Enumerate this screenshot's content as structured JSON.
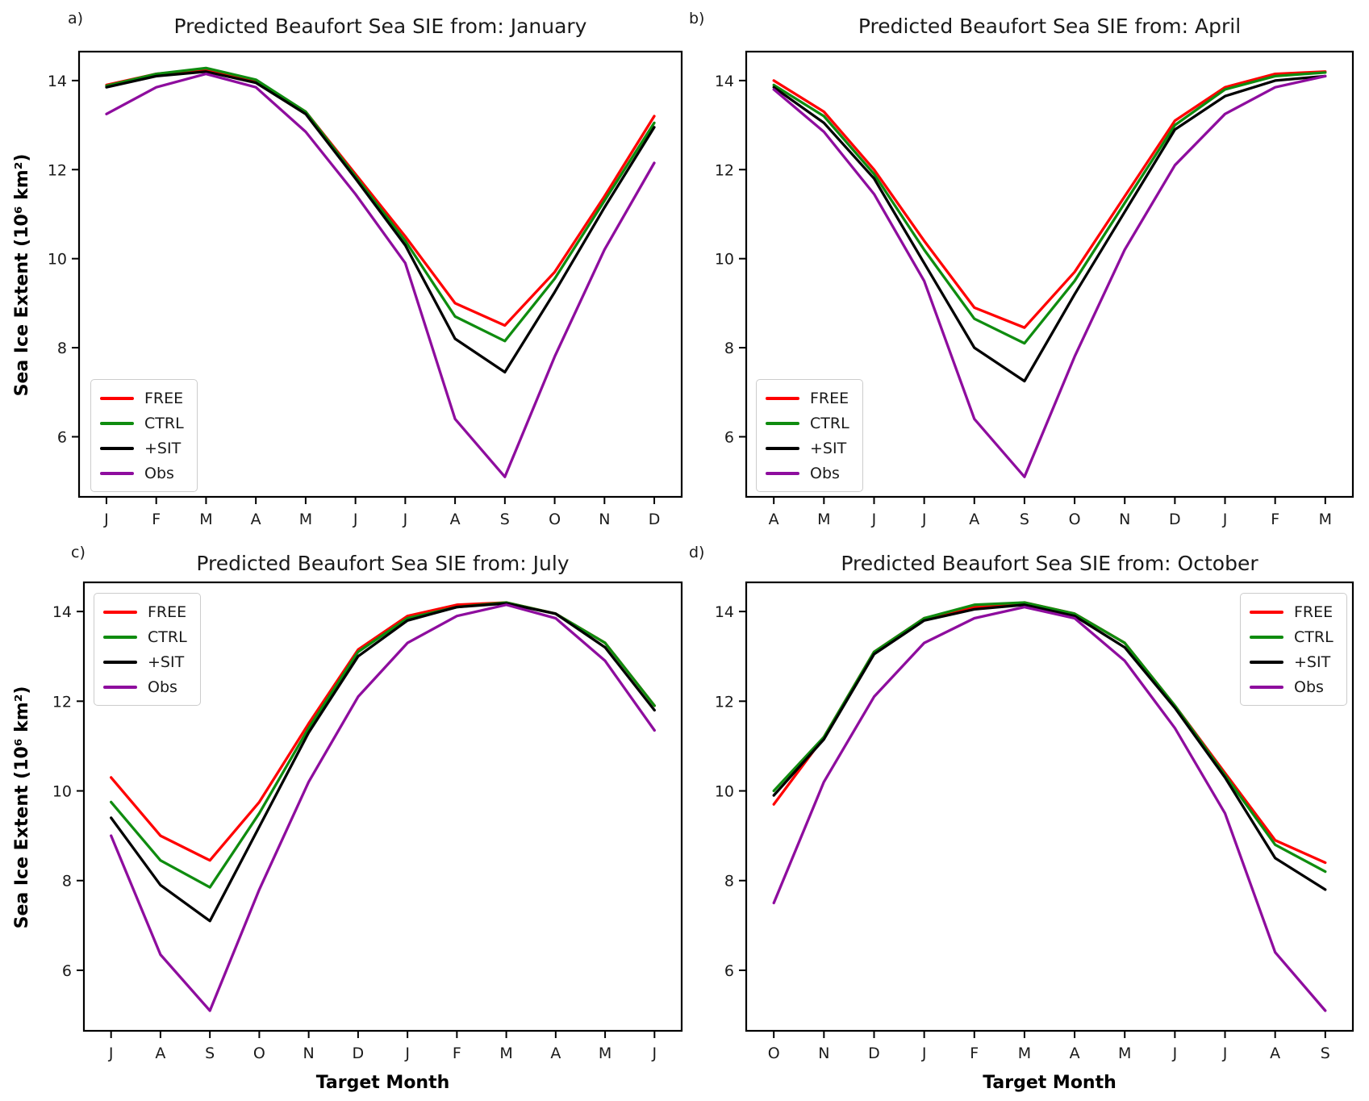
{
  "figure": {
    "ylabel": "Sea Ice Extent (10⁶ km²)",
    "xlabel": "Target Month"
  },
  "chart_data": [
    {
      "type": "line",
      "panel_label": "a)",
      "title": "Predicted Beaufort Sea SIE from: January",
      "xlabel": "",
      "ylabel": "Sea Ice Extent (10⁶ km²)",
      "categories": [
        "J",
        "F",
        "M",
        "A",
        "M",
        "J",
        "J",
        "A",
        "S",
        "O",
        "N",
        "D"
      ],
      "yticks": [
        6,
        8,
        10,
        12,
        14
      ],
      "ylim": [
        4.65,
        14.65
      ],
      "grid": false,
      "legend_position": "lower-left",
      "series": [
        {
          "name": "FREE",
          "color": "#ff0000",
          "values": [
            13.9,
            14.15,
            14.25,
            14.0,
            13.3,
            11.9,
            10.5,
            9.0,
            8.5,
            9.7,
            11.4,
            13.2
          ]
        },
        {
          "name": "CTRL",
          "color": "#0f8c0f",
          "values": [
            13.88,
            14.15,
            14.28,
            14.02,
            13.3,
            11.85,
            10.4,
            8.7,
            8.15,
            9.55,
            11.3,
            13.05
          ]
        },
        {
          "name": "+SIT",
          "color": "#000000",
          "values": [
            13.85,
            14.1,
            14.2,
            13.95,
            13.25,
            11.8,
            10.3,
            8.2,
            7.45,
            9.25,
            11.15,
            12.95
          ]
        },
        {
          "name": "Obs",
          "color": "#8e0d9e",
          "values": [
            13.25,
            13.85,
            14.15,
            13.85,
            12.85,
            11.45,
            9.9,
            6.4,
            5.1,
            7.8,
            10.2,
            12.15
          ]
        }
      ]
    },
    {
      "type": "line",
      "panel_label": "b)",
      "title": "Predicted Beaufort Sea SIE from: April",
      "xlabel": "",
      "ylabel": "",
      "categories": [
        "A",
        "M",
        "J",
        "J",
        "A",
        "S",
        "O",
        "N",
        "D",
        "J",
        "F",
        "M"
      ],
      "yticks": [
        6,
        8,
        10,
        12,
        14
      ],
      "ylim": [
        4.65,
        14.65
      ],
      "grid": false,
      "legend_position": "lower-left",
      "series": [
        {
          "name": "FREE",
          "color": "#ff0000",
          "values": [
            14.0,
            13.3,
            12.0,
            10.4,
            8.9,
            8.45,
            9.7,
            11.4,
            13.1,
            13.85,
            14.15,
            14.2
          ]
        },
        {
          "name": "CTRL",
          "color": "#0f8c0f",
          "values": [
            13.9,
            13.2,
            11.9,
            10.2,
            8.65,
            8.1,
            9.5,
            11.25,
            13.0,
            13.8,
            14.1,
            14.18
          ]
        },
        {
          "name": "+SIT",
          "color": "#000000",
          "values": [
            13.85,
            13.05,
            11.8,
            9.9,
            8.0,
            7.25,
            9.2,
            11.05,
            12.9,
            13.65,
            14.0,
            14.1
          ]
        },
        {
          "name": "Obs",
          "color": "#8e0d9e",
          "values": [
            13.8,
            12.85,
            11.45,
            9.5,
            6.4,
            5.1,
            7.8,
            10.2,
            12.1,
            13.25,
            13.85,
            14.1
          ]
        }
      ]
    },
    {
      "type": "line",
      "panel_label": "c)",
      "title": "Predicted Beaufort Sea SIE from: July",
      "xlabel": "Target Month",
      "ylabel": "Sea Ice Extent (10⁶ km²)",
      "categories": [
        "J",
        "A",
        "S",
        "O",
        "N",
        "D",
        "J",
        "F",
        "M",
        "A",
        "M",
        "J"
      ],
      "yticks": [
        6,
        8,
        10,
        12,
        14
      ],
      "ylim": [
        4.65,
        14.65
      ],
      "grid": false,
      "legend_position": "upper-left",
      "series": [
        {
          "name": "FREE",
          "color": "#ff0000",
          "values": [
            10.3,
            9.0,
            8.45,
            9.75,
            11.5,
            13.15,
            13.9,
            14.15,
            14.2,
            13.95,
            13.3,
            11.9
          ]
        },
        {
          "name": "CTRL",
          "color": "#0f8c0f",
          "values": [
            9.75,
            8.45,
            7.85,
            9.5,
            11.4,
            13.1,
            13.85,
            14.1,
            14.2,
            13.95,
            13.3,
            11.9
          ]
        },
        {
          "name": "+SIT",
          "color": "#000000",
          "values": [
            9.4,
            7.9,
            7.1,
            9.2,
            11.3,
            13.0,
            13.8,
            14.1,
            14.18,
            13.95,
            13.2,
            11.8
          ]
        },
        {
          "name": "Obs",
          "color": "#8e0d9e",
          "values": [
            9.0,
            6.35,
            5.1,
            7.8,
            10.2,
            12.1,
            13.3,
            13.9,
            14.15,
            13.85,
            12.9,
            11.35
          ]
        }
      ]
    },
    {
      "type": "line",
      "panel_label": "d)",
      "title": "Predicted Beaufort Sea SIE from: October",
      "xlabel": "Target Month",
      "ylabel": "",
      "categories": [
        "O",
        "N",
        "D",
        "J",
        "F",
        "M",
        "A",
        "M",
        "J",
        "J",
        "A",
        "S"
      ],
      "yticks": [
        6,
        8,
        10,
        12,
        14
      ],
      "ylim": [
        4.65,
        14.65
      ],
      "grid": false,
      "legend_position": "upper-right",
      "series": [
        {
          "name": "FREE",
          "color": "#ff0000",
          "values": [
            9.7,
            11.2,
            13.1,
            13.85,
            14.1,
            14.2,
            13.95,
            13.3,
            11.9,
            10.4,
            8.9,
            8.4
          ]
        },
        {
          "name": "CTRL",
          "color": "#0f8c0f",
          "values": [
            10.0,
            11.2,
            13.1,
            13.85,
            14.15,
            14.2,
            13.95,
            13.3,
            11.9,
            10.35,
            8.8,
            8.2
          ]
        },
        {
          "name": "+SIT",
          "color": "#000000",
          "values": [
            9.9,
            11.15,
            13.05,
            13.8,
            14.05,
            14.15,
            13.9,
            13.2,
            11.85,
            10.3,
            8.5,
            7.8
          ]
        },
        {
          "name": "Obs",
          "color": "#8e0d9e",
          "values": [
            7.5,
            10.2,
            12.1,
            13.3,
            13.85,
            14.1,
            13.85,
            12.9,
            11.4,
            9.5,
            6.4,
            5.1
          ]
        }
      ]
    }
  ]
}
